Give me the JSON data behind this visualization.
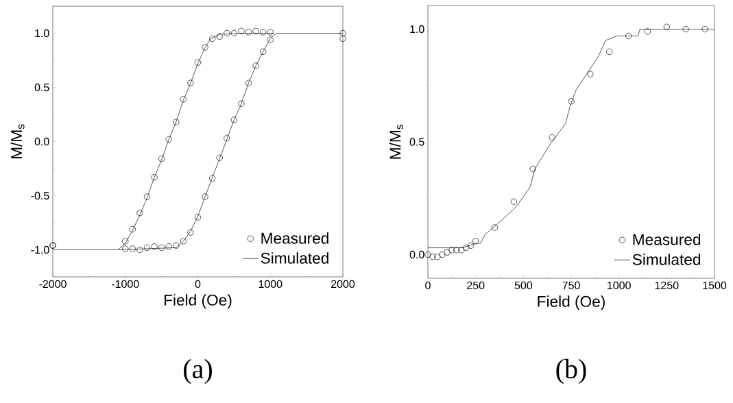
{
  "chart_data": [
    {
      "type": "scatter",
      "xlabel": "Field (Oe)",
      "ylabel": "M/M$_{s}$",
      "annotations": [
        "(a)"
      ],
      "legend": "bottom right",
      "xlim": [
        -2000,
        2000
      ],
      "ylim": [
        -1.25,
        1.25
      ],
      "xticks": [
        -2000,
        -1000,
        0,
        1000,
        2000
      ],
      "yticks": [
        {
          "value": -1,
          "label": "-1.0"
        },
        {
          "value": -0.5,
          "label": "-0.5"
        },
        {
          "value": 0,
          "label": "0.0"
        },
        {
          "value": 0.5,
          "label": "0.5"
        },
        {
          "value": 1,
          "label": "1.0"
        }
      ],
      "series": [
        {
          "name": "Measured",
          "marker": "circle",
          "color": "#000000",
          "x": [
            -2000,
            -1000,
            -900,
            -800,
            -700,
            -600,
            -500,
            -400,
            -300,
            -200,
            -100,
            0,
            100,
            200,
            300,
            400,
            500,
            600,
            700,
            800,
            900,
            1000,
            2000,
            2000,
            -2000,
            -1000,
            -900,
            -800,
            -700,
            -600,
            -500,
            -400,
            -300,
            -200,
            -100,
            0,
            100,
            200,
            300,
            400,
            500,
            600,
            700,
            800,
            900,
            1000
          ],
          "values": [
            -0.96,
            -0.92,
            -0.81,
            -0.66,
            -0.51,
            -0.33,
            -0.16,
            0.02,
            0.18,
            0.39,
            0.54,
            0.73,
            0.87,
            0.95,
            0.97,
            1.0,
            1.0,
            1.02,
            1.01,
            1.02,
            1.01,
            1.01,
            1.0,
            0.95,
            -0.96,
            -0.99,
            -0.99,
            -1.0,
            -0.98,
            -0.97,
            -0.98,
            -0.97,
            -0.96,
            -0.92,
            -0.84,
            -0.7,
            -0.51,
            -0.34,
            -0.15,
            0.03,
            0.2,
            0.35,
            0.54,
            0.7,
            0.83,
            0.94
          ]
        },
        {
          "name": "Simulated",
          "type": "line",
          "marker": "none",
          "color": "#000000",
          "x": [
            -2000,
            -1100,
            -1000,
            -900,
            -800,
            -700,
            -600,
            -500,
            -400,
            -300,
            -200,
            -100,
            0,
            100,
            180,
            300,
            600,
            1050
          ],
          "values": [
            -1.0,
            -1.0,
            -0.94,
            -0.82,
            -0.68,
            -0.52,
            -0.33,
            -0.17,
            0.02,
            0.18,
            0.38,
            0.54,
            0.72,
            0.87,
            0.95,
            0.99,
            1.0,
            1.0
          ]
        },
        {
          "type": "line",
          "marker": "none",
          "color": "#000000",
          "x": [
            -1100,
            -300,
            -200,
            -100,
            0,
            100,
            200,
            300,
            400,
            500,
            600,
            700,
            800,
            900,
            1000,
            1080,
            2000
          ],
          "values": [
            -1.0,
            -0.98,
            -0.92,
            -0.83,
            -0.69,
            -0.51,
            -0.33,
            -0.16,
            0.02,
            0.2,
            0.35,
            0.54,
            0.7,
            0.83,
            0.95,
            1.0,
            1.0
          ]
        }
      ]
    },
    {
      "type": "scatter",
      "xlabel": "Field (Oe)",
      "ylabel": "M/M$_{s}$",
      "annotations": [
        "(b)"
      ],
      "legend": "bottom right",
      "xlim": [
        0,
        1500
      ],
      "ylim": [
        -0.105,
        1.105
      ],
      "xticks": [
        0,
        250,
        500,
        750,
        1000,
        1250,
        1500
      ],
      "yticks": [
        {
          "value": 0,
          "label": "0.0"
        },
        {
          "value": 0.5,
          "label": "0.5"
        },
        {
          "value": 1,
          "label": "1.0"
        }
      ],
      "series": [
        {
          "name": "Measured",
          "marker": "circle",
          "color": "#000000",
          "x": [
            0,
            25,
            50,
            75,
            100,
            125,
            150,
            175,
            200,
            225,
            250,
            350,
            450,
            550,
            650,
            750,
            850,
            950,
            1050,
            1150,
            1250,
            1350,
            1450
          ],
          "values": [
            0.0,
            -0.01,
            -0.01,
            0.0,
            0.01,
            0.02,
            0.02,
            0.02,
            0.03,
            0.04,
            0.06,
            0.12,
            0.235,
            0.38,
            0.52,
            0.68,
            0.8,
            0.9,
            0.97,
            0.99,
            1.01,
            1.0,
            1.0
          ]
        },
        {
          "name": "Simulated",
          "type": "line",
          "marker": "none",
          "color": "#000000",
          "x": [
            0,
            180,
            250,
            275,
            300,
            370,
            460,
            535,
            560,
            640,
            720,
            745,
            775,
            830,
            893,
            930,
            990,
            1100,
            1110,
            1500
          ],
          "values": [
            0.03,
            0.03,
            0.05,
            0.05,
            0.09,
            0.14,
            0.21,
            0.3,
            0.38,
            0.49,
            0.58,
            0.66,
            0.73,
            0.8,
            0.88,
            0.95,
            0.97,
            0.97,
            1.0,
            1.0
          ]
        }
      ]
    }
  ]
}
